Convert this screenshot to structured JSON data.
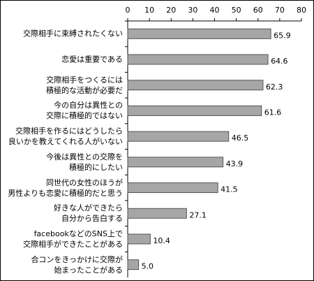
{
  "chart_data": {
    "type": "barh",
    "categories": [
      "交際相手に束縛されたくない",
      "恋愛は重要である",
      "交際相手をつくるには\n積極的な活動が必要だ",
      "今の自分は異性との\n交際に積極的ではない",
      "交際相手を作るにはどうしたら\n良いかを教えてくれる人がいない",
      "今後は異性との交際を\n積極的にしたい",
      "同世代の女性のほうが\n男性よりも恋愛に積極的だと思う",
      "好きな人ができたら\n自分から告白する",
      "facebookなどのSNS上で\n交際相手ができたことがある",
      "合コンをきっかけに交際が\n始まったことがある"
    ],
    "values": [
      65.9,
      64.6,
      62.3,
      61.6,
      46.5,
      43.9,
      41.5,
      27.1,
      10.4,
      5.0
    ],
    "value_labels": [
      "65.9",
      "64.6",
      "62.3",
      "61.6",
      "46.5",
      "43.9",
      "41.5",
      "27.1",
      "10.4",
      "5.0"
    ],
    "color": "#a6a6a6",
    "xlim": [
      0,
      80
    ],
    "xticks": [
      0,
      10,
      20,
      30,
      40,
      50,
      60,
      70,
      80
    ]
  }
}
